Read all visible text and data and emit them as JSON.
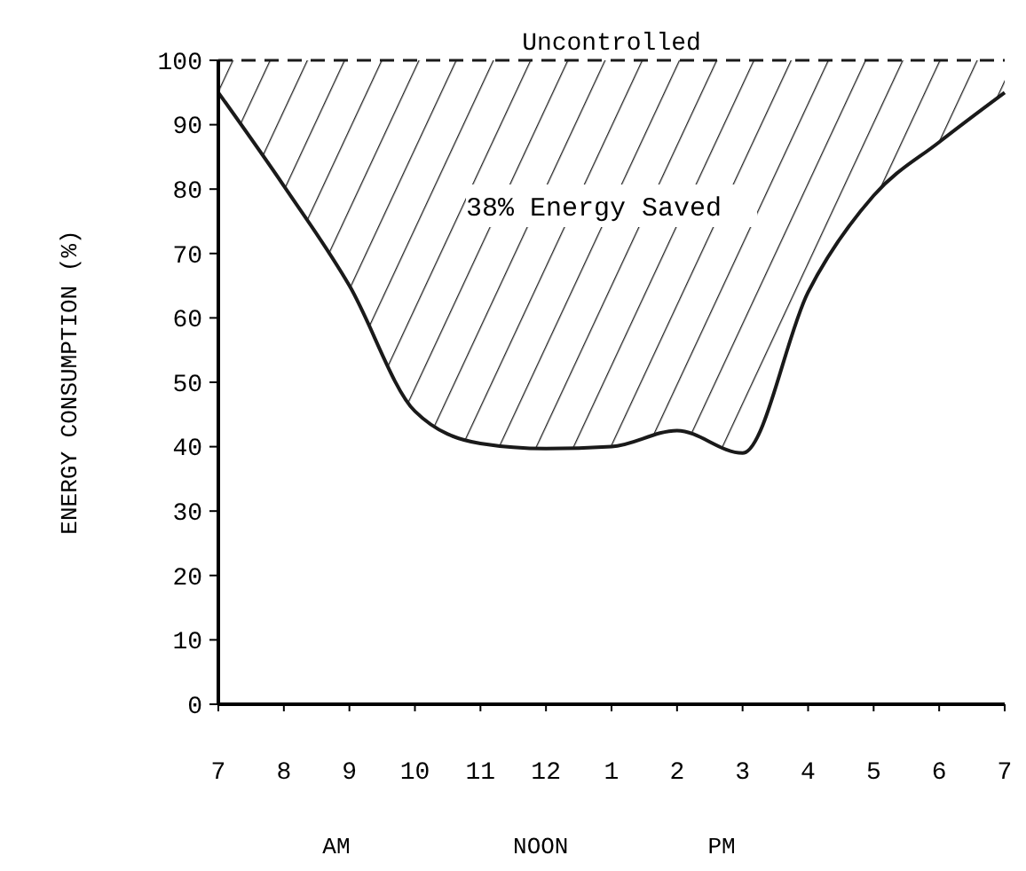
{
  "chart_data": {
    "type": "line",
    "ylabel": "ENERGY CONSUMPTION (%)",
    "categories": [
      "7",
      "8",
      "9",
      "10",
      "11",
      "12",
      "1",
      "2",
      "3",
      "4",
      "5",
      "6",
      "7"
    ],
    "ylim": [
      0,
      100
    ],
    "yticks": [
      0,
      10,
      20,
      30,
      40,
      50,
      60,
      70,
      80,
      90,
      100
    ],
    "grid": false,
    "marker": "none",
    "series": [
      {
        "color": "#1a1a1a",
        "values": [
          95,
          80.5,
          65,
          45.5,
          40.5,
          39.7,
          40,
          42.5,
          39,
          64,
          79,
          87.3,
          95
        ],
        "lower": [
          95,
          80.5,
          65,
          45.5,
          40.5,
          39.7,
          40,
          42.5,
          39,
          64,
          79,
          87.3,
          95
        ],
        "upper": [
          100,
          100,
          100,
          100,
          100,
          100,
          100,
          100,
          100,
          100,
          100,
          100,
          100
        ]
      }
    ],
    "ref_lines": [
      {
        "axis": "y",
        "value": 100,
        "label": "Uncontrolled",
        "line_style": "dashed",
        "color": "#1a1a1a"
      }
    ],
    "annotations": [
      "38% Energy Saved",
      "AM",
      "NOON",
      "PM"
    ]
  }
}
